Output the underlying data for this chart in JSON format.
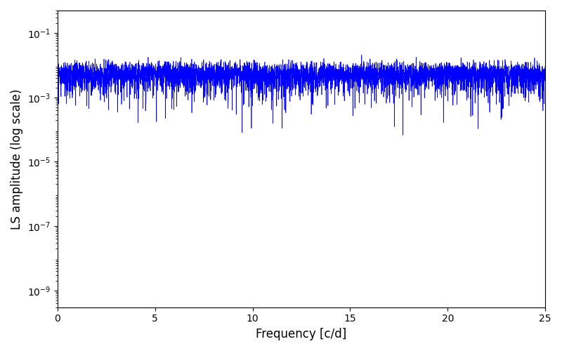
{
  "xlabel": "Frequency [c/d]",
  "ylabel": "LS amplitude (log scale)",
  "xlim": [
    0,
    25
  ],
  "ylim": [
    3e-10,
    0.5
  ],
  "line_color": "#0000ff",
  "background_color": "#ffffff",
  "yticks": [
    1e-09,
    1e-07,
    1e-05,
    0.001,
    0.1
  ],
  "xticks": [
    0,
    5,
    10,
    15,
    20,
    25
  ],
  "figsize": [
    8.0,
    5.0
  ],
  "dpi": 100,
  "seed": 12345,
  "n_points": 5000,
  "freq_max": 25.0
}
